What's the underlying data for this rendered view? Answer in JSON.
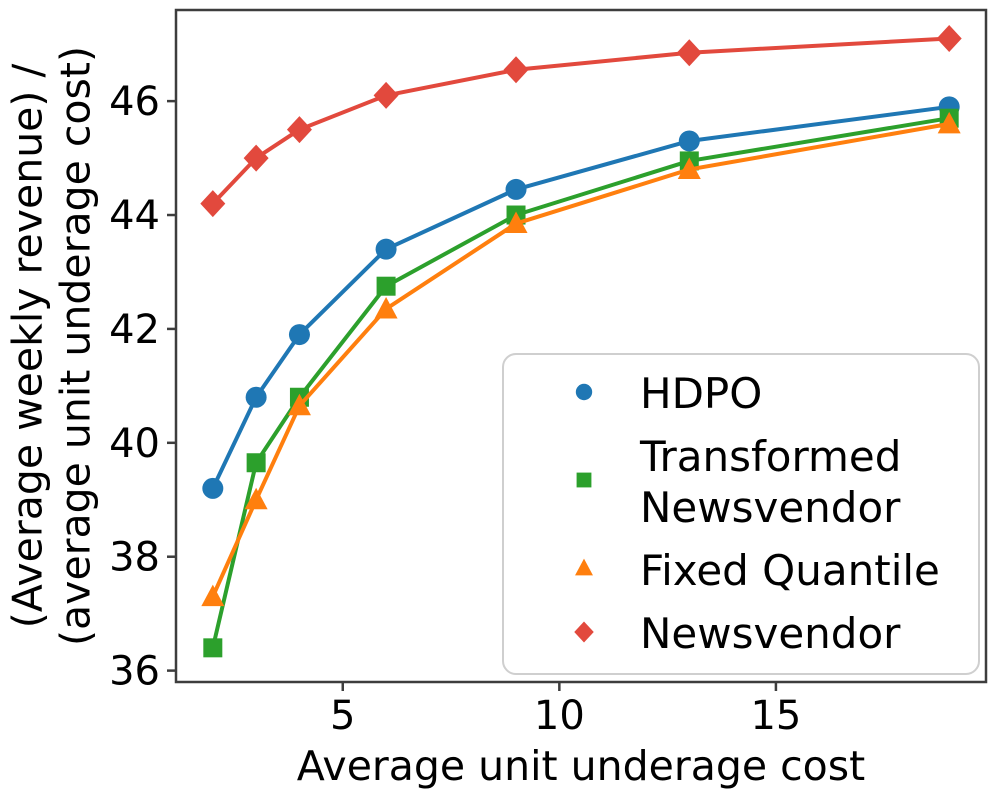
{
  "chart_data": {
    "type": "line",
    "title": "",
    "xlabel": "Average unit underage cost",
    "ylabel": "(Average weekly revenue) / (average unit underage cost)",
    "ylabel_lines": [
      "(Average weekly revenue) /",
      "(average unit underage cost)"
    ],
    "x": [
      2,
      3,
      4,
      6,
      9,
      13,
      19
    ],
    "series": [
      {
        "name": "HDPO",
        "legend_lines": [
          "HDPO"
        ],
        "marker": "circle",
        "color": "#1f77b4",
        "values": [
          39.2,
          40.8,
          41.9,
          43.4,
          44.45,
          45.3,
          45.9
        ]
      },
      {
        "name": "Transformed Newsvendor",
        "legend_lines": [
          "Transformed",
          "Newsvendor"
        ],
        "marker": "square",
        "color": "#2ca02c",
        "values": [
          36.4,
          39.65,
          40.8,
          42.75,
          44.0,
          44.95,
          45.7
        ]
      },
      {
        "name": "Fixed Quantile",
        "legend_lines": [
          "Fixed Quantile"
        ],
        "marker": "triangle",
        "color": "#ff7f0e",
        "values": [
          37.3,
          39.0,
          40.65,
          42.35,
          43.85,
          44.8,
          45.6
        ]
      },
      {
        "name": "Newsvendor",
        "legend_lines": [
          "Newsvendor"
        ],
        "marker": "diamond",
        "color": "#e2493d",
        "values": [
          44.2,
          45.0,
          45.5,
          46.1,
          46.55,
          46.85,
          47.1
        ]
      }
    ],
    "xticks": [
      5,
      10,
      15
    ],
    "yticks": [
      36,
      38,
      40,
      42,
      44,
      46
    ],
    "xlim": [
      1.15,
      19.85
    ],
    "ylim": [
      35.8,
      47.6
    ],
    "grid": false,
    "legend_position": "lower right"
  }
}
